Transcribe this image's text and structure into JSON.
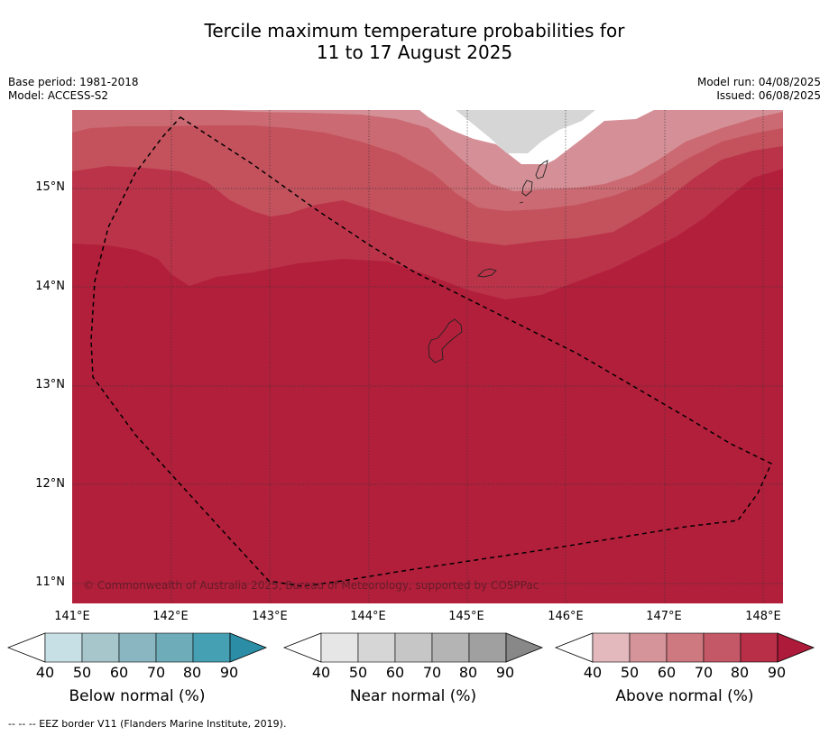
{
  "title_line1": "Tercile maximum temperature probabilities for",
  "title_line2": "11 to 17 August 2025",
  "base_period": "Base period: 1981-2018",
  "model": "Model: ACCESS-S2",
  "model_run": "Model run: 04/08/2025",
  "issued": "Issued: 06/08/2025",
  "copyright": "© Commonwealth of Australia 2025, Bureau of Meteorology, supported by COSPPac",
  "footnote": "--  --  -- EEZ border V11 (Flanders Marine Institute, 2019).",
  "lat_labels": [
    "15°N",
    "14°N",
    "13°N",
    "12°N",
    "11°N"
  ],
  "lon_labels": [
    "141°E",
    "142°E",
    "143°E",
    "144°E",
    "145°E",
    "146°E",
    "147°E",
    "148°E"
  ],
  "colorbars": [
    {
      "caption": "Below normal (%)",
      "ticks": [
        "40",
        "50",
        "60",
        "70",
        "80",
        "90"
      ],
      "colors": [
        "#ffffff",
        "#c7e0e5",
        "#a7c6cb",
        "#8ab6c1",
        "#6eacba",
        "#46a0b3",
        "#2b8ea6"
      ]
    },
    {
      "caption": "Near normal (%)",
      "ticks": [
        "40",
        "50",
        "60",
        "70",
        "80",
        "90"
      ],
      "colors": [
        "#ffffff",
        "#e6e6e6",
        "#d6d6d6",
        "#c6c6c6",
        "#b4b4b4",
        "#a0a0a0",
        "#888888"
      ]
    },
    {
      "caption": "Above normal (%)",
      "ticks": [
        "40",
        "50",
        "60",
        "70",
        "80",
        "90"
      ],
      "colors": [
        "#ffffff",
        "#e3b9bd",
        "#d5939a",
        "#ce7880",
        "#c55867",
        "#b82f47",
        "#ad1a3a"
      ]
    }
  ],
  "colors": {
    "above_90": "#b21f3b",
    "above_80": "#bb3349",
    "above_70": "#c4525d",
    "above_60": "#cb6a72",
    "above_50": "#d59097",
    "near_50": "#d6d6d6"
  }
}
